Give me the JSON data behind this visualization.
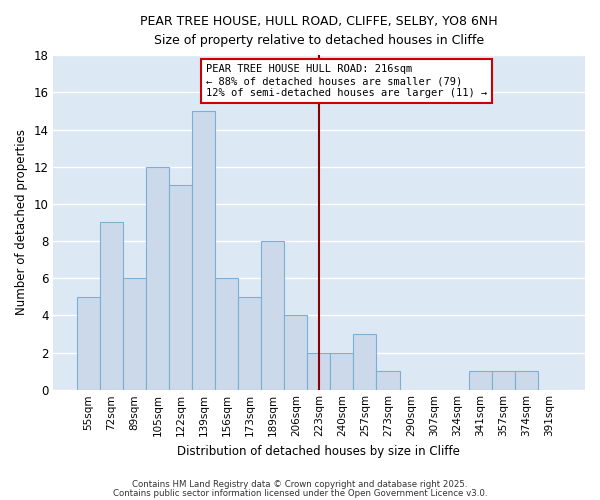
{
  "title_line1": "PEAR TREE HOUSE, HULL ROAD, CLIFFE, SELBY, YO8 6NH",
  "title_line2": "Size of property relative to detached houses in Cliffe",
  "xlabel": "Distribution of detached houses by size in Cliffe",
  "ylabel": "Number of detached properties",
  "categories": [
    "55sqm",
    "72sqm",
    "89sqm",
    "105sqm",
    "122sqm",
    "139sqm",
    "156sqm",
    "173sqm",
    "189sqm",
    "206sqm",
    "223sqm",
    "240sqm",
    "257sqm",
    "273sqm",
    "290sqm",
    "307sqm",
    "324sqm",
    "341sqm",
    "357sqm",
    "374sqm",
    "391sqm"
  ],
  "values": [
    5,
    9,
    6,
    12,
    11,
    15,
    6,
    5,
    8,
    4,
    2,
    2,
    3,
    1,
    0,
    0,
    0,
    1,
    1,
    1,
    0
  ],
  "bar_color": "#ccd9ea",
  "bar_edge_color": "#7bafd4",
  "fig_background_color": "#ffffff",
  "plot_background_color": "#dde8f5",
  "grid_color": "#ffffff",
  "vline_x_index": 10.0,
  "vline_color": "#8b0000",
  "annotation_text": "PEAR TREE HOUSE HULL ROAD: 216sqm\n← 88% of detached houses are smaller (79)\n12% of semi-detached houses are larger (11) →",
  "annotation_box_color": "#ffffff",
  "annotation_box_edge_color": "#cc0000",
  "footnote1": "Contains HM Land Registry data © Crown copyright and database right 2025.",
  "footnote2": "Contains public sector information licensed under the Open Government Licence v3.0.",
  "ylim": [
    0,
    18
  ],
  "yticks": [
    0,
    2,
    4,
    6,
    8,
    10,
    12,
    14,
    16,
    18
  ]
}
